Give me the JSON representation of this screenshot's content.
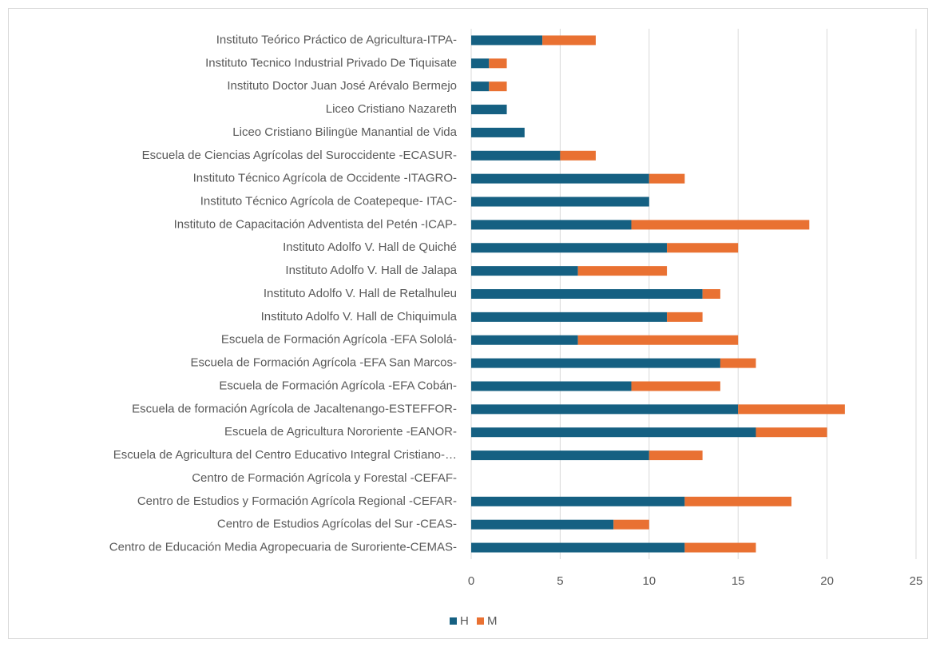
{
  "chart_data": {
    "type": "stacked-barh",
    "categories": [
      "Instituto Teórico Práctico de Agricultura-ITPA-",
      "Instituto Tecnico Industrial Privado De Tiquisate",
      "Instituto Doctor Juan José Arévalo Bermejo",
      "Liceo Cristiano Nazareth",
      "Liceo Cristiano Bilingüe Manantial de Vida",
      "Escuela de Ciencias Agrícolas del Suroccidente -ECASUR-",
      "Instituto Técnico Agrícola de Occidente -ITAGRO-",
      "Instituto Técnico Agrícola de Coatepeque- ITAC-",
      "Instituto de Capacitación Adventista del Petén -ICAP-",
      "Instituto Adolfo V. Hall de Quiché",
      "Instituto Adolfo V. Hall de Jalapa",
      "Instituto Adolfo V. Hall  de Retalhuleu",
      "Instituto Adolfo V. Hall  de Chiquimula",
      "Escuela de Formación Agrícola -EFA Sololá-",
      "Escuela de Formación Agrícola -EFA San Marcos-",
      "Escuela de Formación Agrícola -EFA Cobán-",
      "Escuela de formación Agrícola de Jacaltenango-ESTEFFOR-",
      "Escuela de Agricultura Nororiente -EANOR-",
      "Escuela de Agricultura del Centro Educativo Integral Cristiano-…",
      "Centro de Formación Agrícola y Forestal -CEFAF-",
      "Centro de Estudios y Formación Agrícola Regional  -CEFAR-",
      "Centro de Estudios Agrícolas del Sur -CEAS-",
      "Centro de Educación Media Agropecuaria de Suroriente-CEMAS-"
    ],
    "series": [
      {
        "name": "H",
        "color": "#156082",
        "values": [
          4,
          1,
          1,
          2,
          3,
          5,
          10,
          10,
          9,
          11,
          6,
          13,
          11,
          6,
          14,
          9,
          15,
          16,
          10,
          0,
          12,
          8,
          12
        ]
      },
      {
        "name": "M",
        "color": "#e97132",
        "values": [
          3,
          1,
          1,
          0,
          0,
          2,
          2,
          0,
          10,
          4,
          5,
          1,
          2,
          9,
          2,
          5,
          6,
          4,
          3,
          0,
          6,
          2,
          4
        ]
      }
    ],
    "xlim": [
      0,
      25
    ],
    "xticks": [
      0,
      5,
      10,
      15,
      20,
      25
    ],
    "grid": true,
    "legend": "bottom"
  }
}
